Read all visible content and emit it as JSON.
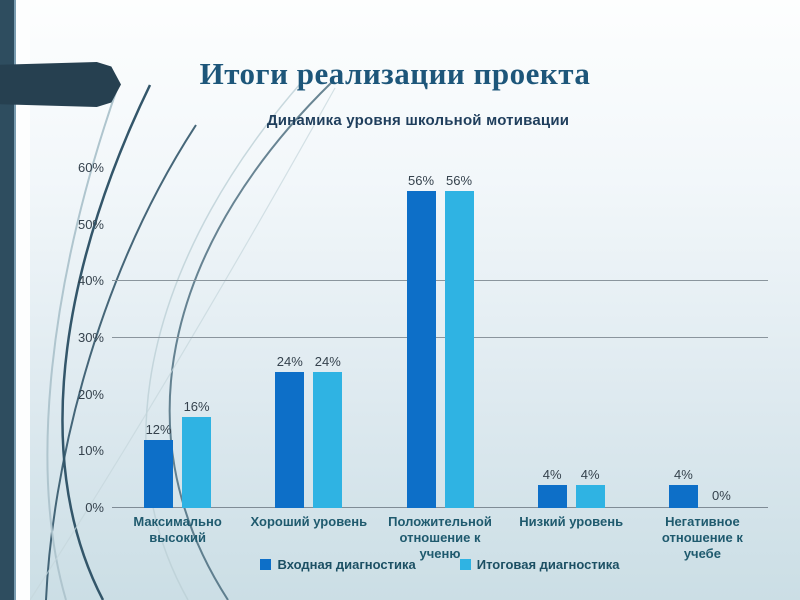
{
  "slide": {
    "title": "Итоги реализации проекта"
  },
  "chart_data": {
    "type": "bar",
    "title": "Динамика уровня школьной мотивации",
    "categories": [
      "Максимально высокий",
      "Хороший уровень",
      "Положительной отношение к ученю",
      "Низкий уровень",
      "Негативное отношение к учебе"
    ],
    "category_label_lines": [
      [
        "Максимально",
        "высокий"
      ],
      [
        "Хороший уровень"
      ],
      [
        "Положительной",
        "отношение к",
        "ученю"
      ],
      [
        "Низкий уровень"
      ],
      [
        "Негативное",
        "отношение к",
        "учебе"
      ]
    ],
    "series": [
      {
        "name": "Входная диагностика",
        "color": "#0D6FC8",
        "values": [
          12,
          24,
          56,
          4,
          4
        ]
      },
      {
        "name": "Итоговая диагностика",
        "color": "#2FB3E3",
        "values": [
          16,
          24,
          56,
          4,
          0
        ]
      }
    ],
    "value_suffix": "%",
    "ylim": [
      0,
      60
    ],
    "ytick_step": 10,
    "ytick_labels": [
      "0%",
      "10%",
      "20%",
      "30%",
      "40%",
      "50%",
      "60%"
    ],
    "gridlines_at": [
      30,
      40
    ],
    "legend_position": "bottom",
    "data_labels": true,
    "grid": "partial-horizontal",
    "xlabel": "",
    "ylabel": ""
  }
}
